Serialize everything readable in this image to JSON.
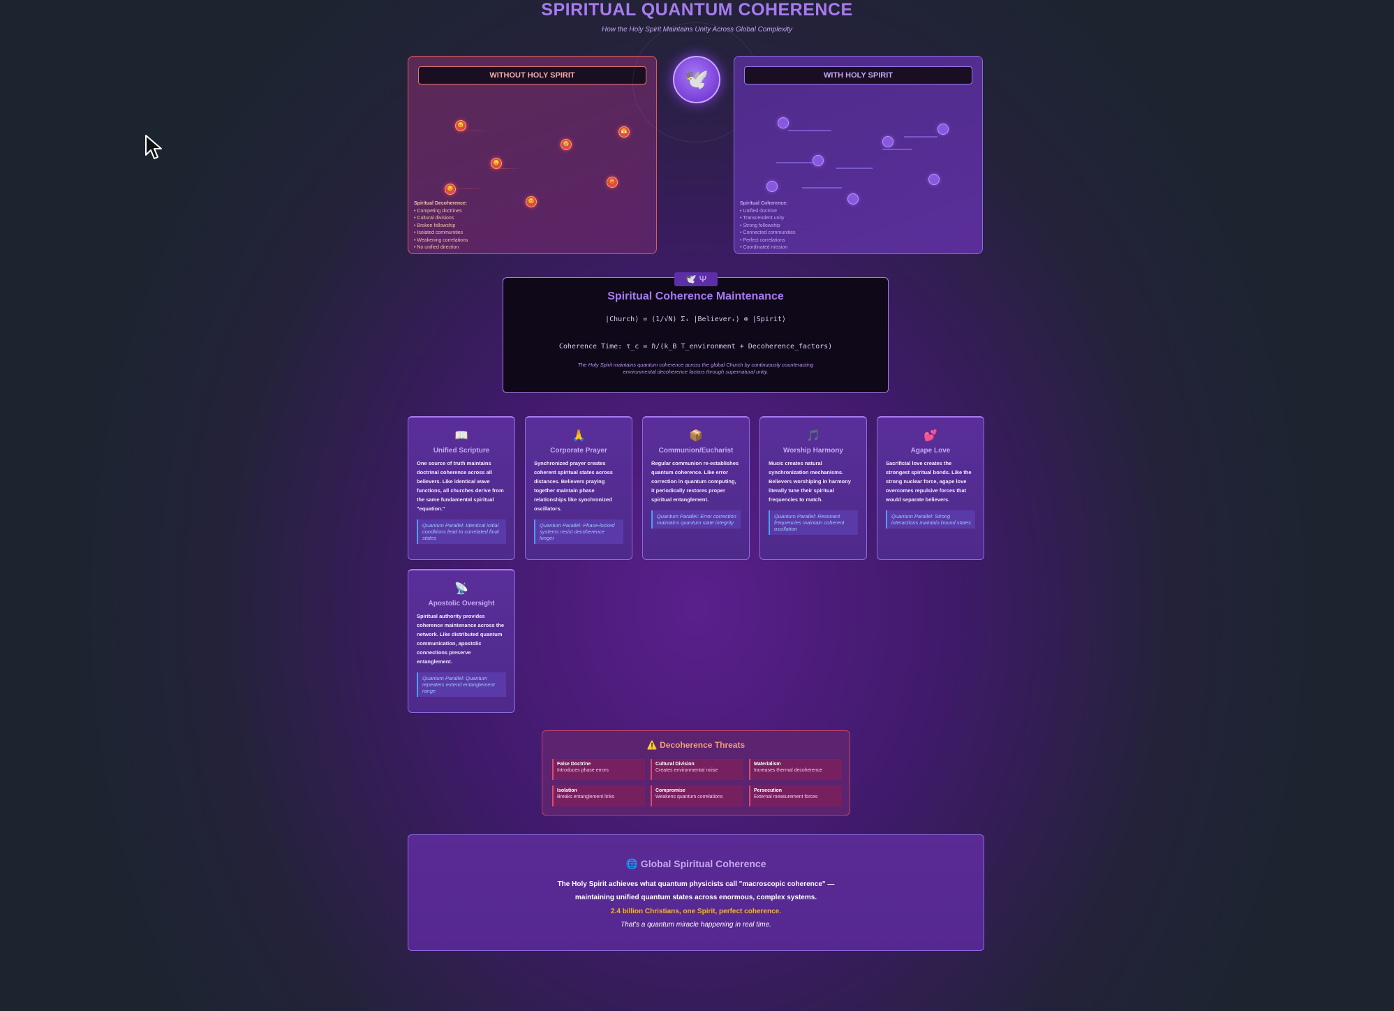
{
  "header": {
    "title": "SPIRITUAL QUANTUM COHERENCE",
    "subtitle": "How the Holy Spirit Maintains Unity Across Global Complexity"
  },
  "left_panel": {
    "header": "WITHOUT HOLY SPIRIT",
    "list_title": "Spiritual Decoherence:",
    "items": [
      "• Competing doctrines",
      "• Cultural divisions",
      "• Broken fellowship",
      "• Isolated communities",
      "• Weakening correlations",
      "• No unified direction"
    ]
  },
  "right_panel": {
    "header": "WITH HOLY SPIRIT",
    "list_title": "Spiritual Coherence:",
    "items": [
      "• Unified doctrine",
      "• Transcendent unity",
      "• Strong fellowship",
      "• Connected communities",
      "• Perfect correlations",
      "• Coordinated mission"
    ]
  },
  "center_orb": {
    "icon": "🕊️"
  },
  "equation": {
    "tab": "🕊️ Ψ",
    "title": "Spiritual Coherence Maintenance",
    "formula": "|Church⟩ = (1/√N) Σᵢ |Believerᵢ⟩ ⊗ |Spirit⟩",
    "coherence_time": "Coherence Time: τ_c = ℏ/(k_B T_environment + Decoherence_factors)",
    "note": "The Holy Spirit maintains quantum coherence across the global Church by continuously counteracting environmental decoherence factors through supernatural unity."
  },
  "cards": [
    {
      "icon": "📖",
      "title": "Unified Scripture",
      "body": "One source of truth maintains doctrinal coherence across all believers. Like identical wave functions, all churches derive from the same fundamental spiritual \"equation.\"",
      "parallel": "Quantum Parallel: Identical initial conditions lead to correlated final states"
    },
    {
      "icon": "🙏",
      "title": "Corporate Prayer",
      "body": "Synchronized prayer creates coherent spiritual states across distances. Believers praying together maintain phase relationships like synchronized oscillators.",
      "parallel": "Quantum Parallel: Phase-locked systems resist decoherence longer"
    },
    {
      "icon": "📦",
      "title": "Communion/Eucharist",
      "body": "Regular communion re-establishes quantum coherence. Like error correction in quantum computing, it periodically restores proper spiritual entanglement.",
      "parallel": "Quantum Parallel: Error correction maintains quantum state integrity"
    },
    {
      "icon": "🎵",
      "title": "Worship Harmony",
      "body": "Music creates natural synchronization mechanisms. Believers worshiping in harmony literally tune their spiritual frequencies to match.",
      "parallel": "Quantum Parallel: Resonant frequencies maintain coherent oscillation"
    },
    {
      "icon": "💕",
      "title": "Agape Love",
      "body": "Sacrificial love creates the strongest spiritual bonds. Like the strong nuclear force, agape love overcomes repulsive forces that would separate believers.",
      "parallel": "Quantum Parallel: Strong interactions maintain bound states"
    },
    {
      "icon": "📡",
      "title": "Apostolic Oversight",
      "body": "Spiritual authority provides coherence maintenance across the network. Like distributed quantum communication, apostolic connections preserve entanglement.",
      "parallel": "Quantum Parallel: Quantum repeaters extend entanglement range"
    }
  ],
  "threats": {
    "title": "⚠️ Decoherence Threats",
    "items": [
      {
        "name": "False Doctrine",
        "desc": "Introduces phase errors"
      },
      {
        "name": "Cultural Division",
        "desc": "Creates environmental noise"
      },
      {
        "name": "Materialism",
        "desc": "Increases thermal decoherence"
      },
      {
        "name": "Isolation",
        "desc": "Breaks entanglement links"
      },
      {
        "name": "Compromise",
        "desc": "Weakens quantum correlations"
      },
      {
        "name": "Persecution",
        "desc": "External measurement forces"
      }
    ]
  },
  "global": {
    "title": "🌐 Global Spiritual Coherence",
    "line1": "The Holy Spirit achieves what quantum physicists call \"macroscopic coherence\" —",
    "line2": "maintaining unified quantum states across enormous, complex systems.",
    "highlight": "2.4 billion Christians, one Spirit, perfect coherence.",
    "closing": "That's a quantum miracle happening in real time."
  },
  "colors": {
    "accent": "#a77bf0",
    "decoherence": "#e04a4a",
    "highlight": "#f5b528",
    "parallel": "#9fc8f8"
  },
  "node_emojis": [
    "😠",
    "😢",
    "😤",
    "😞",
    "😡",
    "😔",
    "😣"
  ]
}
